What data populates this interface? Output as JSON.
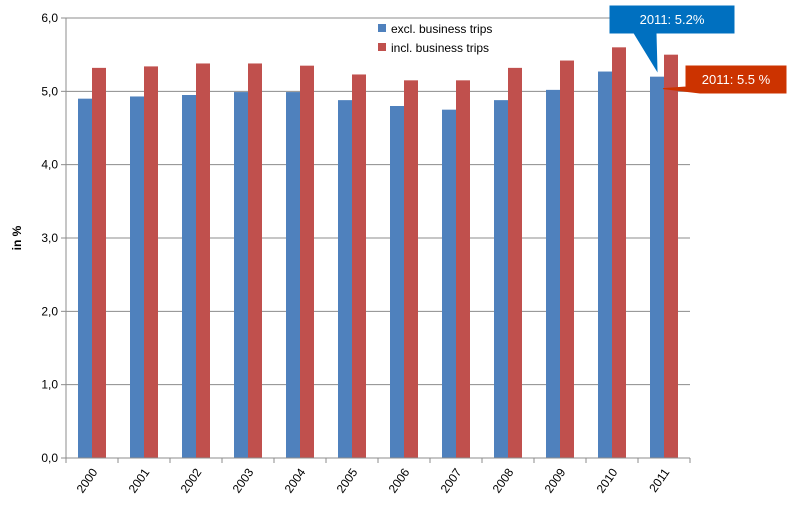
{
  "chart_data": {
    "type": "bar",
    "title": "",
    "xlabel": "",
    "ylabel": "in %",
    "ylim": [
      0,
      6
    ],
    "yticks": [
      "0,0",
      "1,0",
      "2,0",
      "3,0",
      "4,0",
      "5,0",
      "6,0"
    ],
    "grid": true,
    "legend_position": "top-center",
    "categories": [
      "2000",
      "2001",
      "2002",
      "2003",
      "2004",
      "2005",
      "2006",
      "2007",
      "2008",
      "2009",
      "2010",
      "2011"
    ],
    "series": [
      {
        "name": "excl. business trips",
        "color": "#4F81BD",
        "values": [
          4.9,
          4.93,
          4.95,
          4.99,
          4.99,
          4.88,
          4.8,
          4.75,
          4.88,
          5.02,
          5.27,
          5.2
        ]
      },
      {
        "name": "incl. business trips",
        "color": "#C0504D",
        "values": [
          5.32,
          5.34,
          5.38,
          5.38,
          5.35,
          5.23,
          5.15,
          5.15,
          5.32,
          5.42,
          5.6,
          5.5
        ]
      }
    ],
    "annotations": [
      {
        "text": "2011: 5.2%",
        "color": "#0070C0",
        "series": 0,
        "category": "2011"
      },
      {
        "text": "2011: 5.5 %",
        "color": "#CC3300",
        "series": 1,
        "category": "2011"
      }
    ]
  }
}
